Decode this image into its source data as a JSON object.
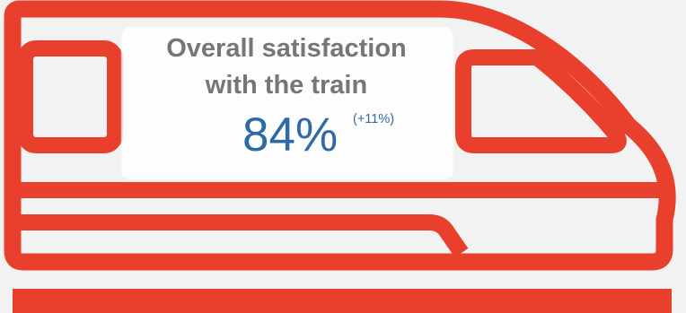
{
  "infographic": {
    "headline": {
      "line1": "Overall satisfaction",
      "line2": "with the train"
    },
    "metric": {
      "value": "84%",
      "change": "(+11%)"
    },
    "icon": "high-speed-train-icon",
    "colors": {
      "train_outline": "#e8402d",
      "background": "#f2f2f2",
      "headline_text": "#767676",
      "metric_text": "#2e6aa5"
    }
  }
}
